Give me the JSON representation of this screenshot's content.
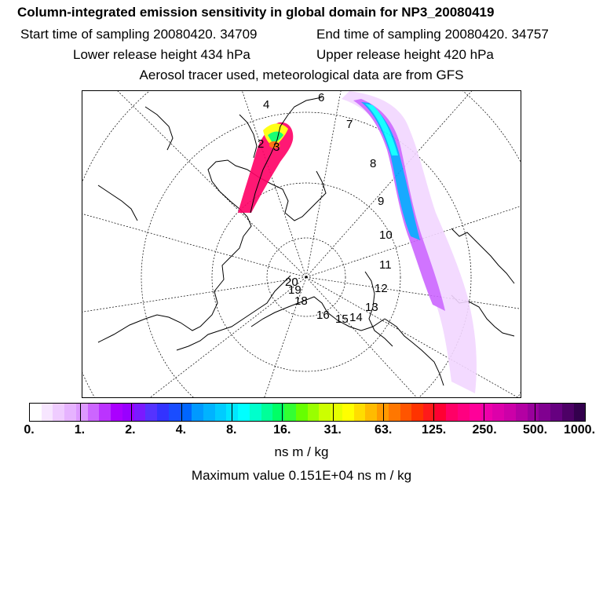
{
  "header": {
    "title": "Column-integrated emission sensitivity in global domain for NP3_20080419",
    "start_time": "Start time of sampling 20080420. 34709",
    "end_time": "End time of sampling 20080420. 34757",
    "lower_release": "Lower release height  434 hPa",
    "upper_release": "Upper release height  420 hPa",
    "aerosol_note": "Aerosol tracer used, meteorological data are from GFS"
  },
  "map": {
    "projection": "north-polar-stereographic",
    "trajectory_labels": [
      "4",
      "6",
      "7",
      "2",
      "3",
      "8",
      "9",
      "10",
      "11",
      "12",
      "13",
      "14",
      "15",
      "16",
      "18",
      "19",
      "20"
    ],
    "plume_colors": [
      "#f2d6ff",
      "#cc66ff",
      "#9900ff",
      "#00a0ff",
      "#00ffff",
      "#00ff66",
      "#ffff00",
      "#ff6600",
      "#ff0066"
    ]
  },
  "colorbar": {
    "colors": [
      "#ffffff",
      "#f7e6ff",
      "#efccff",
      "#e6b3ff",
      "#dd99ff",
      "#cc66ff",
      "#bb33ff",
      "#aa00ff",
      "#9900ff",
      "#7a1aff",
      "#5533ff",
      "#3333ff",
      "#1a4dff",
      "#0066ff",
      "#0099ff",
      "#00b3ff",
      "#00ccff",
      "#00e6ff",
      "#00ffff",
      "#00ffcc",
      "#00ff99",
      "#00ff66",
      "#33ff33",
      "#66ff00",
      "#99ff00",
      "#ccff00",
      "#e6ff00",
      "#ffff00",
      "#ffdd00",
      "#ffbb00",
      "#ff9900",
      "#ff7700",
      "#ff5500",
      "#ff3300",
      "#ff1a1a",
      "#ff0033",
      "#ff0066",
      "#ff0080",
      "#ff0099",
      "#ee00aa",
      "#dd00aa",
      "#cc00a8",
      "#b300a3",
      "#99009c",
      "#800090",
      "#660080",
      "#4d0066",
      "#33004d"
    ],
    "tick_labels": [
      "0.",
      "1.",
      "2.",
      "4.",
      "8.",
      "16.",
      "31.",
      "63.",
      "125.",
      "250.",
      "500.",
      "1000."
    ],
    "units": "ns m / kg"
  },
  "footer": {
    "max_value": "Maximum value  0.151E+04 ns m / kg"
  }
}
